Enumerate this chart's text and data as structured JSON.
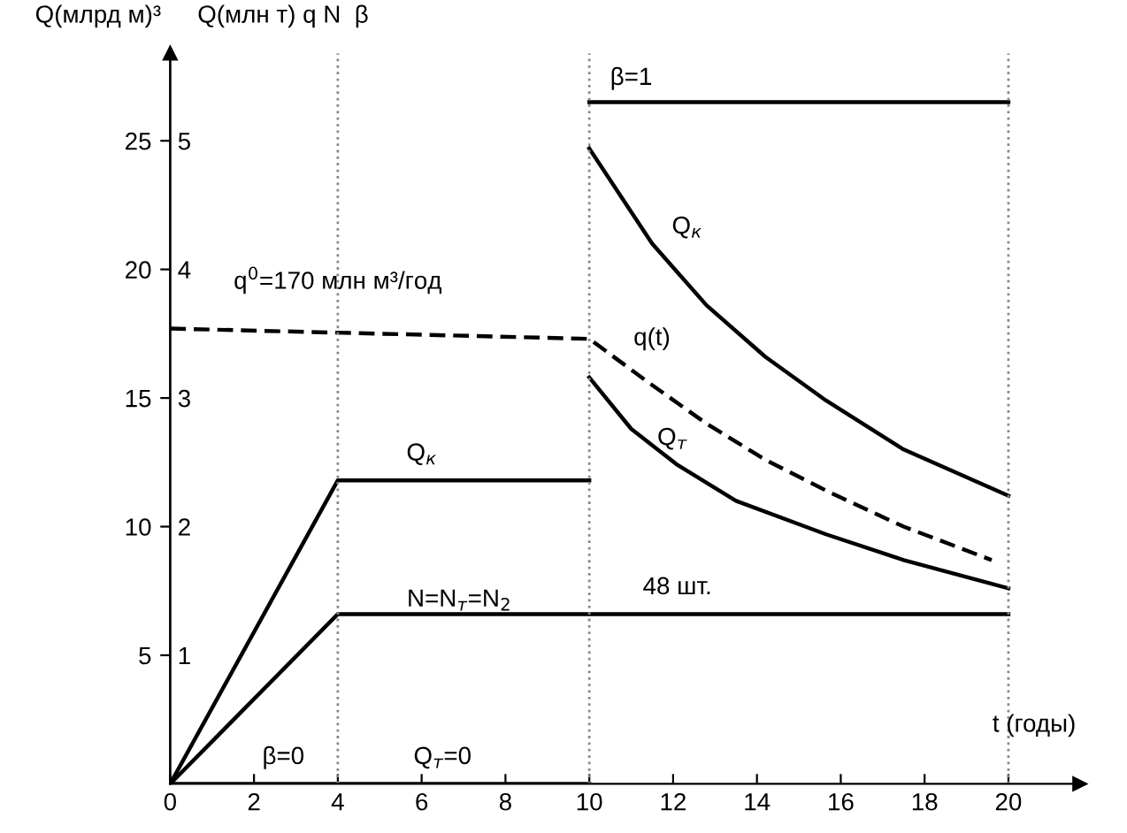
{
  "chart_data": {
    "type": "line",
    "ylabel": "Q(млрд м)³",
    "y2label": "Q(млн т) q N  β",
    "xlabel": "t (годы)",
    "xlim": [
      0,
      21.7
    ],
    "xticks": [
      0,
      2,
      4,
      6,
      8,
      10,
      12,
      14,
      16,
      18,
      20
    ],
    "ylim": [
      0,
      28.4
    ],
    "yticks": [
      5,
      10,
      15,
      20,
      25
    ],
    "y2lim": [
      0,
      5.68
    ],
    "y2ticks": [
      1,
      2,
      3,
      4,
      5
    ],
    "grid": false,
    "marker": "none",
    "series": [
      {
        "color": "#000000",
        "line_style": "solid",
        "x": [
          0,
          4,
          10
        ],
        "values": [
          0,
          11.8,
          11.8
        ]
      },
      {
        "color": "#000000",
        "line_style": "solid",
        "x": [
          0,
          4,
          20
        ],
        "values": [
          0,
          6.6,
          6.6
        ]
      },
      {
        "color": "#000000",
        "line_style": "dashed",
        "x": [
          0,
          10,
          11.5,
          12.8,
          14.2,
          15.65,
          17.5,
          19.6
        ],
        "values": [
          17.7,
          17.3,
          15.5,
          14.0,
          12.6,
          11.4,
          10.0,
          8.7
        ]
      },
      {
        "color": "#000000",
        "line_style": "solid",
        "x": [
          10,
          11.5,
          12.8,
          14.2,
          15.65,
          17.5,
          20
        ],
        "values": [
          24.7,
          21.0,
          18.6,
          16.6,
          14.9,
          13.0,
          11.2
        ]
      },
      {
        "color": "#000000",
        "line_style": "solid",
        "x": [
          10,
          11,
          12.1,
          13.5,
          15.65,
          17.5,
          20
        ],
        "values": [
          15.8,
          13.8,
          12.4,
          11.0,
          9.7,
          8.7,
          7.6
        ]
      },
      {
        "color": "#000000",
        "line_style": "solid",
        "x": [
          10,
          20
        ],
        "values": [
          26.5,
          26.5
        ]
      },
      {
        "color": "#000000",
        "line_style": "solid",
        "x": [
          0,
          10
        ],
        "values": [
          0,
          0
        ]
      }
    ],
    "ref_lines": [
      {
        "axis": "x",
        "value": 4,
        "color": "#888888",
        "line_style": "dotted"
      },
      {
        "axis": "x",
        "value": 10,
        "color": "#888888",
        "line_style": "dotted"
      },
      {
        "axis": "x",
        "value": 20,
        "color": "#888888",
        "line_style": "dotted"
      }
    ],
    "annotations": [
      {
        "text": "β=1",
        "x": 11,
        "y": 26.5
      },
      {
        "text": "Q$_{к}$",
        "x": 11.5,
        "y": 21.0
      },
      {
        "text": "q(t)",
        "x": 10,
        "y": 17.3
      },
      {
        "text": "Q$_{т}$",
        "x": 12.1,
        "y": 12.4
      },
      {
        "text": "48 шт.",
        "x": 12.1,
        "y": 6.6
      },
      {
        "text": "Q$_{к}$",
        "x": 6,
        "y": 11.8
      },
      {
        "text": "N=N$_{т}$=N$_{2}$",
        "x": 6.9,
        "y": 6.6
      },
      {
        "text": "β=0",
        "x": 2.7,
        "y": 0
      },
      {
        "text": "Q$_{т}$=0",
        "x": 6.5,
        "y": 0
      },
      {
        "text": "q$^{0}$=170 млн м³/год",
        "x": 4,
        "y": 17.7
      }
    ]
  }
}
